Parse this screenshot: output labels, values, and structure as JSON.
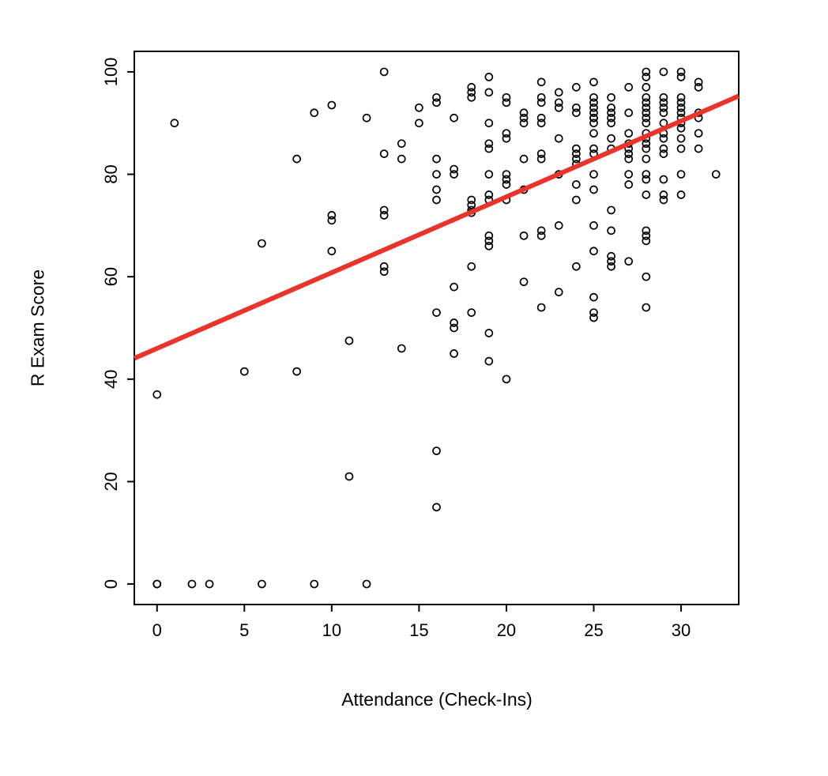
{
  "chart_data": {
    "type": "scatter",
    "title": "",
    "xlabel": "Attendance (Check-Ins)",
    "ylabel": "R Exam Score",
    "xlim": [
      -1.3,
      33.3
    ],
    "ylim": [
      -4,
      104
    ],
    "x_ticks": [
      0,
      5,
      10,
      15,
      20,
      25,
      30
    ],
    "y_ticks": [
      0,
      20,
      40,
      60,
      80,
      100
    ],
    "grid": false,
    "legend": "none",
    "point_style": {
      "shape": "open-circle",
      "color": "#000000",
      "radius": 4.5,
      "stroke_width": 1.7
    },
    "regression_line": {
      "slope": 1.48,
      "intercept": 46,
      "color": "#e8342b",
      "width": 6
    },
    "points": [
      [
        0,
        0
      ],
      [
        0,
        0
      ],
      [
        0,
        37
      ],
      [
        1,
        90
      ],
      [
        2,
        0
      ],
      [
        3,
        0
      ],
      [
        5,
        41.5
      ],
      [
        6,
        0
      ],
      [
        6,
        66.5
      ],
      [
        8,
        41.5
      ],
      [
        8,
        83
      ],
      [
        9,
        0
      ],
      [
        9,
        92
      ],
      [
        10,
        65
      ],
      [
        10,
        71
      ],
      [
        10,
        72
      ],
      [
        10,
        93.5
      ],
      [
        11,
        21
      ],
      [
        11,
        47.5
      ],
      [
        12,
        0
      ],
      [
        12,
        91
      ],
      [
        13,
        61
      ],
      [
        13,
        62
      ],
      [
        13,
        72
      ],
      [
        13,
        73
      ],
      [
        13,
        84
      ],
      [
        13,
        100
      ],
      [
        14,
        46
      ],
      [
        14,
        83
      ],
      [
        14,
        86
      ],
      [
        15,
        90
      ],
      [
        15,
        93
      ],
      [
        16,
        15
      ],
      [
        16,
        26
      ],
      [
        16,
        53
      ],
      [
        16,
        75
      ],
      [
        16,
        77
      ],
      [
        16,
        80
      ],
      [
        16,
        83
      ],
      [
        16,
        94
      ],
      [
        16,
        95
      ],
      [
        17,
        45
      ],
      [
        17,
        50
      ],
      [
        17,
        51
      ],
      [
        17,
        58
      ],
      [
        17,
        80
      ],
      [
        17,
        81
      ],
      [
        17,
        91
      ],
      [
        18,
        53
      ],
      [
        18,
        62
      ],
      [
        18,
        72.5
      ],
      [
        18,
        73
      ],
      [
        18,
        74
      ],
      [
        18,
        75
      ],
      [
        18,
        95
      ],
      [
        18,
        96
      ],
      [
        18,
        97
      ],
      [
        19,
        43.5
      ],
      [
        19,
        49
      ],
      [
        19,
        66
      ],
      [
        19,
        67
      ],
      [
        19,
        68
      ],
      [
        19,
        75
      ],
      [
        19,
        76
      ],
      [
        19,
        80
      ],
      [
        19,
        85
      ],
      [
        19,
        86
      ],
      [
        19,
        90
      ],
      [
        19,
        96
      ],
      [
        19,
        99
      ],
      [
        20,
        40
      ],
      [
        20,
        75
      ],
      [
        20,
        78
      ],
      [
        20,
        79
      ],
      [
        20,
        80
      ],
      [
        20,
        87
      ],
      [
        20,
        88
      ],
      [
        20,
        94
      ],
      [
        20,
        95
      ],
      [
        21,
        59
      ],
      [
        21,
        68
      ],
      [
        21,
        77
      ],
      [
        21,
        83
      ],
      [
        21,
        90
      ],
      [
        21,
        91
      ],
      [
        21,
        92
      ],
      [
        22,
        54
      ],
      [
        22,
        68
      ],
      [
        22,
        69
      ],
      [
        22,
        83
      ],
      [
        22,
        84
      ],
      [
        22,
        90
      ],
      [
        22,
        91
      ],
      [
        22,
        94
      ],
      [
        22,
        95
      ],
      [
        22,
        98
      ],
      [
        23,
        57
      ],
      [
        23,
        70
      ],
      [
        23,
        80
      ],
      [
        23,
        87
      ],
      [
        23,
        93
      ],
      [
        23,
        94
      ],
      [
        23,
        96
      ],
      [
        24,
        62
      ],
      [
        24,
        75
      ],
      [
        24,
        78
      ],
      [
        24,
        82
      ],
      [
        24,
        83
      ],
      [
        24,
        84
      ],
      [
        24,
        85
      ],
      [
        24,
        92
      ],
      [
        24,
        93
      ],
      [
        24,
        97
      ],
      [
        25,
        52
      ],
      [
        25,
        53
      ],
      [
        25,
        56
      ],
      [
        25,
        65
      ],
      [
        25,
        70
      ],
      [
        25,
        77
      ],
      [
        25,
        80
      ],
      [
        25,
        84
      ],
      [
        25,
        85
      ],
      [
        25,
        88
      ],
      [
        25,
        90
      ],
      [
        25,
        91
      ],
      [
        25,
        91
      ],
      [
        25,
        92
      ],
      [
        25,
        93
      ],
      [
        25,
        94
      ],
      [
        25,
        95
      ],
      [
        25,
        98
      ],
      [
        26,
        62
      ],
      [
        26,
        63
      ],
      [
        26,
        64
      ],
      [
        26,
        69
      ],
      [
        26,
        73
      ],
      [
        26,
        85
      ],
      [
        26,
        87
      ],
      [
        26,
        90
      ],
      [
        26,
        91
      ],
      [
        26,
        92
      ],
      [
        26,
        93
      ],
      [
        26,
        95
      ],
      [
        27,
        63
      ],
      [
        27,
        78
      ],
      [
        27,
        80
      ],
      [
        27,
        83
      ],
      [
        27,
        84
      ],
      [
        27,
        85
      ],
      [
        27,
        86
      ],
      [
        27,
        88
      ],
      [
        27,
        92
      ],
      [
        27,
        97
      ],
      [
        28,
        54
      ],
      [
        28,
        60
      ],
      [
        28,
        67
      ],
      [
        28,
        68
      ],
      [
        28,
        69
      ],
      [
        28,
        76
      ],
      [
        28,
        79
      ],
      [
        28,
        80
      ],
      [
        28,
        83
      ],
      [
        28,
        85
      ],
      [
        28,
        86
      ],
      [
        28,
        87
      ],
      [
        28,
        88
      ],
      [
        28,
        90
      ],
      [
        28,
        91
      ],
      [
        28,
        92
      ],
      [
        28,
        93
      ],
      [
        28,
        94
      ],
      [
        28,
        95
      ],
      [
        28,
        97
      ],
      [
        28,
        99
      ],
      [
        28,
        100
      ],
      [
        29,
        75
      ],
      [
        29,
        76
      ],
      [
        29,
        79
      ],
      [
        29,
        84
      ],
      [
        29,
        85
      ],
      [
        29,
        87
      ],
      [
        29,
        88
      ],
      [
        29,
        90
      ],
      [
        29,
        92
      ],
      [
        29,
        93
      ],
      [
        29,
        94
      ],
      [
        29,
        95
      ],
      [
        29,
        100
      ],
      [
        30,
        76
      ],
      [
        30,
        80
      ],
      [
        30,
        85
      ],
      [
        30,
        87
      ],
      [
        30,
        89
      ],
      [
        30,
        90
      ],
      [
        30,
        91
      ],
      [
        30,
        92
      ],
      [
        30,
        93
      ],
      [
        30,
        94
      ],
      [
        30,
        95
      ],
      [
        30,
        99
      ],
      [
        30,
        100
      ],
      [
        31,
        85
      ],
      [
        31,
        88
      ],
      [
        31,
        91
      ],
      [
        31,
        92
      ],
      [
        31,
        97
      ],
      [
        31,
        98
      ],
      [
        32,
        80
      ]
    ],
    "colors": {
      "frame": "#000000",
      "background": "#ffffff"
    }
  }
}
